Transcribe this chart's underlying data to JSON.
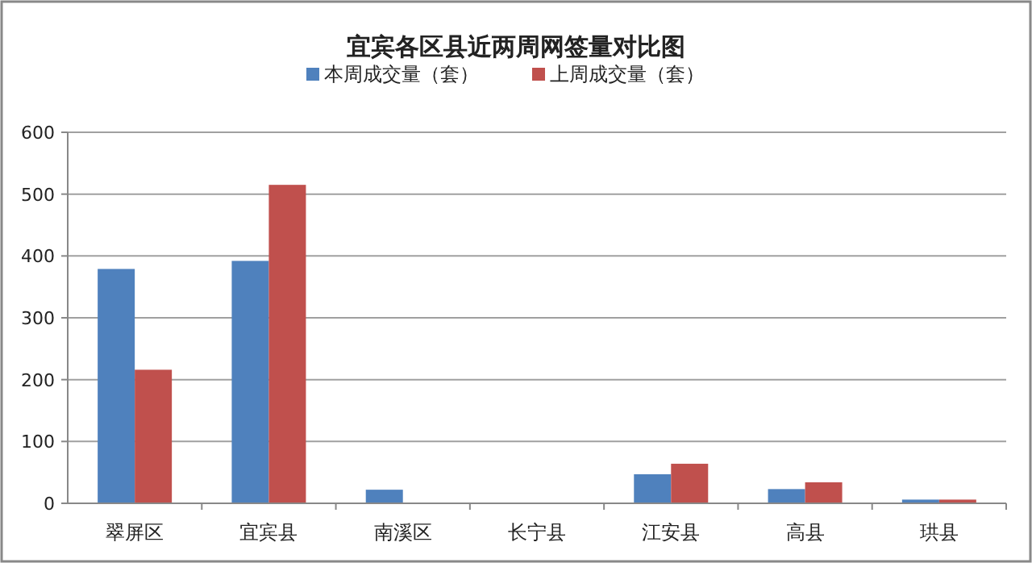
{
  "chart_data": {
    "type": "bar",
    "title": "宜宾各区县近两周网签量对比图",
    "categories": [
      "翠屏区",
      "宜宾县",
      "南溪区",
      "长宁县",
      "江安县",
      "高县",
      "珙县"
    ],
    "series": [
      {
        "name": "本周成交量（套）",
        "color": "#4f81bd",
        "values": [
          379,
          392,
          22,
          0,
          47,
          23,
          6
        ]
      },
      {
        "name": "上周成交量（套）",
        "color": "#c0504d",
        "values": [
          216,
          515,
          0,
          0,
          64,
          34,
          6
        ]
      }
    ],
    "ylim": [
      0,
      600
    ],
    "yticks": [
      0,
      100,
      200,
      300,
      400,
      500,
      600
    ],
    "grid": "y",
    "legend": "top"
  }
}
